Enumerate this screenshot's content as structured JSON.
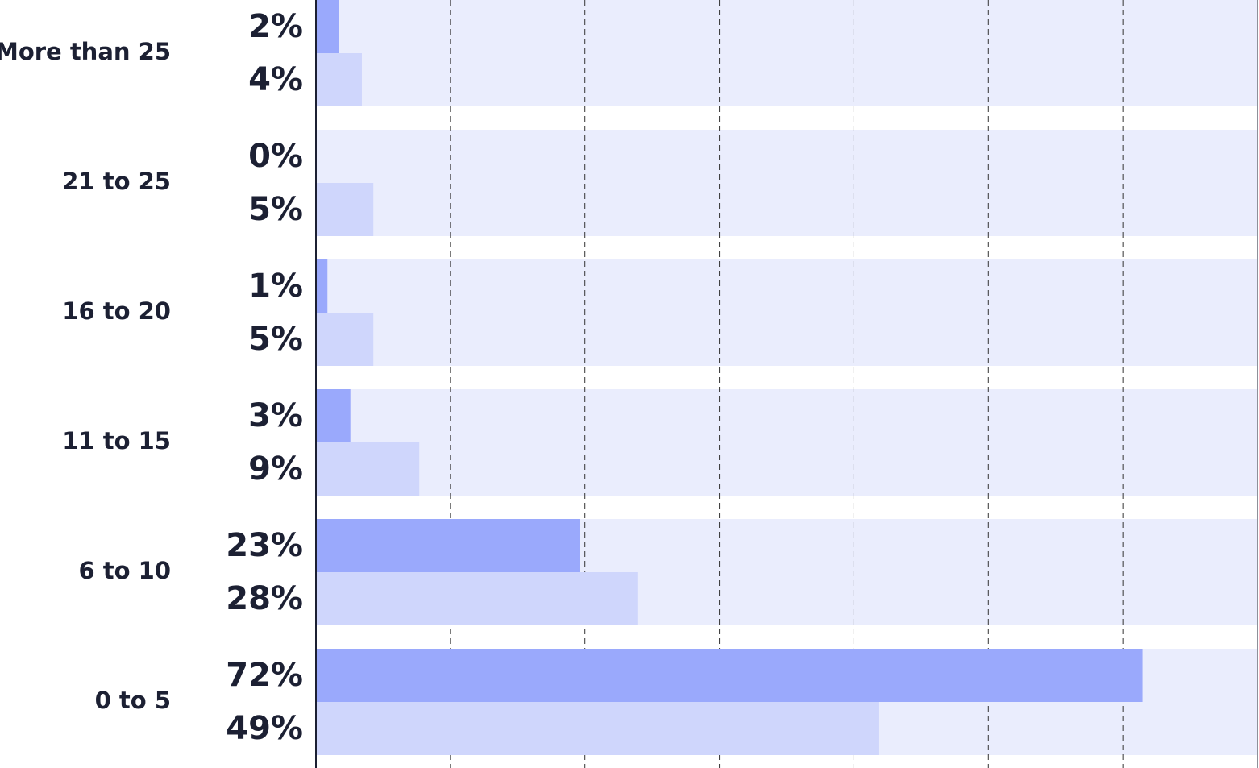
{
  "chart_data": {
    "type": "bar",
    "orientation": "horizontal",
    "categories": [
      "More than 25",
      "21 to 25",
      "16 to 20",
      "11 to 15",
      "6 to 10",
      "0 to 5"
    ],
    "series": [
      {
        "color": "#9aa9fc",
        "values": [
          2,
          0,
          1,
          3,
          23,
          72
        ],
        "value_labels": [
          "2%",
          "0%",
          "1%",
          "3%",
          "23%",
          "72%"
        ]
      },
      {
        "color": "#cfd6fc",
        "values": [
          4,
          5,
          5,
          9,
          28,
          49
        ],
        "value_labels": [
          "4%",
          "5%",
          "5%",
          "9%",
          "28%",
          "49%"
        ]
      }
    ],
    "xlim": [
      0,
      82
    ],
    "band_color": "#eaedfd"
  }
}
